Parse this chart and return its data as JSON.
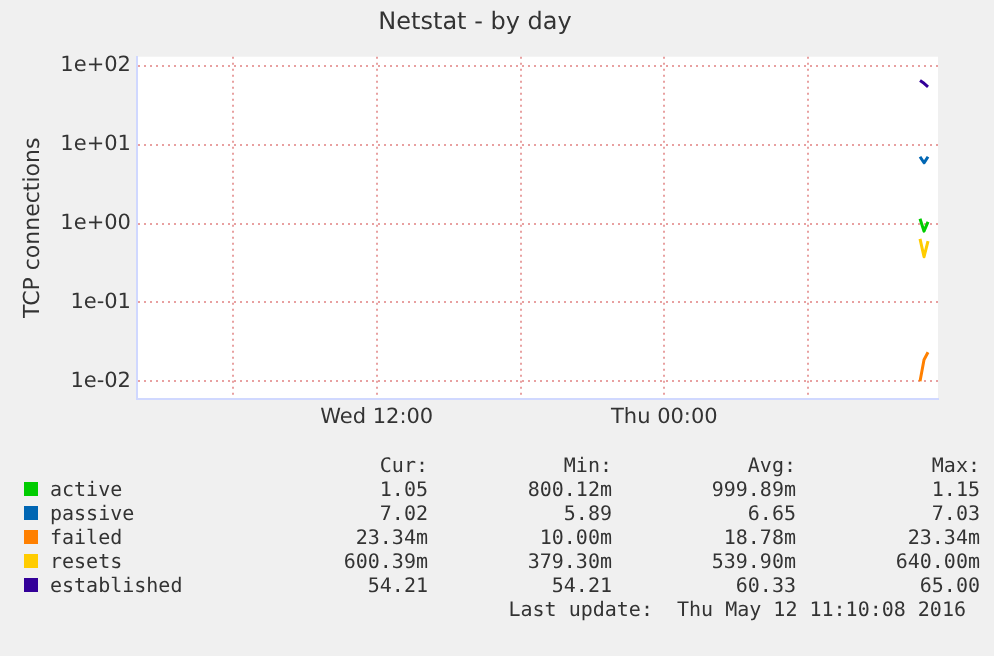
{
  "chart_data": {
    "type": "line",
    "title": "Netstat - by day",
    "ylabel": "TCP connections",
    "log": "y",
    "grid": true,
    "legend": "bottom",
    "marker": "none",
    "line_style": "solid",
    "xlim": [
      "2016-05-11T02:00",
      "2016-05-12T11:25"
    ],
    "xticks": [
      {
        "value": "2016-05-11T06:00",
        "label": null
      },
      {
        "value": "2016-05-11T12:00",
        "label": "Wed 12:00"
      },
      {
        "value": "2016-05-11T18:00",
        "label": null
      },
      {
        "value": "2016-05-12T00:00",
        "label": "Thu 00:00"
      },
      {
        "value": "2016-05-12T06:00",
        "label": null
      }
    ],
    "ylim": [
      0.006,
      130
    ],
    "yticks": [
      {
        "value": 0.01,
        "label": "1e-02"
      },
      {
        "value": 0.1,
        "label": "1e-01"
      },
      {
        "value": 1,
        "label": "1e+00"
      },
      {
        "value": 10,
        "label": "1e+01"
      },
      {
        "value": 100,
        "label": "1e+02"
      }
    ],
    "x": [
      "2016-05-12T10:40",
      "2016-05-12T10:50",
      "2016-05-12T11:00"
    ],
    "series": [
      {
        "name": "active",
        "color": "#00cc00",
        "values": [
          1.15,
          0.8,
          1.05
        ]
      },
      {
        "name": "passive",
        "color": "#0066b3",
        "values": [
          7.03,
          5.89,
          7.02
        ]
      },
      {
        "name": "failed",
        "color": "#ff8000",
        "values": [
          0.01,
          0.0188,
          0.0233
        ]
      },
      {
        "name": "resets",
        "color": "#ffcc00",
        "values": [
          0.64,
          0.379,
          0.6
        ]
      },
      {
        "name": "established",
        "color": "#330099",
        "values": [
          65,
          60,
          54.21
        ]
      }
    ],
    "annotations": [
      "Cur:",
      "Min:",
      "Avg:",
      "Max:",
      "1.05",
      "800.12m",
      "999.89m",
      "1.15",
      "7.02",
      "5.89",
      "6.65",
      "7.03",
      "23.34m",
      "10.00m",
      "18.78m",
      "23.34m",
      "600.39m",
      "379.30m",
      "539.90m",
      "640.00m",
      "54.21",
      "54.21",
      "60.33",
      "65.00",
      "Last update:  Thu May 12 11:10:08 2016"
    ]
  }
}
